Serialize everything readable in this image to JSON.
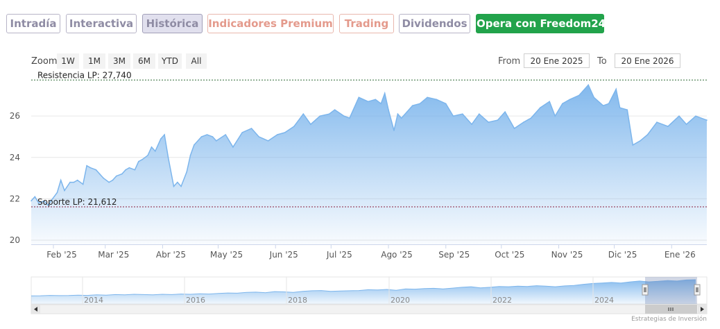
{
  "tabs": [
    {
      "label": "Intradía",
      "style": "purple"
    },
    {
      "label": "Interactiva",
      "style": "purple"
    },
    {
      "label": "Histórica",
      "style": "active"
    },
    {
      "label": "Indicadores Premium",
      "style": "red"
    },
    {
      "label": "Trading",
      "style": "red"
    },
    {
      "label": "Dividendos",
      "style": "purple"
    },
    {
      "label": "Opera con Freedom24",
      "style": "green"
    }
  ],
  "zoom": {
    "label": "Zoom",
    "buttons": [
      "1W",
      "1M",
      "3M",
      "6M",
      "YTD",
      "All"
    ]
  },
  "range": {
    "from_label": "From",
    "from_value": "20 Ene 2025",
    "to_label": "To",
    "to_value": "20 Ene 2026"
  },
  "credits": "Estrategias de Inversión",
  "colors": {
    "line": "#7cb5ec",
    "resistance": "#2e6a35",
    "support": "#8a1c3c",
    "accent_green": "#22a34b"
  },
  "chart_data": {
    "type": "area",
    "title": "",
    "x_start": "2025-01-20",
    "x_end": "2026-01-20",
    "x_ticks": [
      "Feb '25",
      "Mar '25",
      "Abr '25",
      "May '25",
      "Jun '25",
      "Jul '25",
      "Ago '25",
      "Sep '25",
      "Oct '25",
      "Nov '25",
      "Dic '25",
      "Ene '26"
    ],
    "y_ticks": [
      "20",
      "22",
      "24",
      "26"
    ],
    "ylim": [
      19.8,
      27.85
    ],
    "grid": true,
    "resistance": {
      "label": "Resistencia LP: 27,740",
      "value": 27.74
    },
    "support": {
      "label": "Soporte LP: 21,612",
      "value": 21.612
    },
    "series": [
      {
        "x": [
          "2025-01-20",
          "2025-01-22",
          "2025-01-24",
          "2025-01-27",
          "2025-01-29",
          "2025-02-03",
          "2025-02-05",
          "2025-02-07",
          "2025-02-10",
          "2025-02-12",
          "2025-02-14",
          "2025-02-17",
          "2025-02-19",
          "2025-02-21",
          "2025-02-24",
          "2025-02-26",
          "2025-02-28",
          "2025-03-03",
          "2025-03-05",
          "2025-03-07",
          "2025-03-10",
          "2025-03-12",
          "2025-03-14",
          "2025-03-17",
          "2025-03-19",
          "2025-03-21",
          "2025-03-24",
          "2025-03-26",
          "2025-03-28",
          "2025-03-31",
          "2025-04-02",
          "2025-04-04",
          "2025-04-07",
          "2025-04-09",
          "2025-04-11",
          "2025-04-14",
          "2025-04-16",
          "2025-04-18",
          "2025-04-22",
          "2025-04-25",
          "2025-04-28",
          "2025-04-30",
          "2025-05-05",
          "2025-05-09",
          "2025-05-14",
          "2025-05-19",
          "2025-05-23",
          "2025-05-28",
          "2025-06-02",
          "2025-06-06",
          "2025-06-11",
          "2025-06-16",
          "2025-06-20",
          "2025-06-25",
          "2025-06-30",
          "2025-07-03",
          "2025-07-08",
          "2025-07-11",
          "2025-07-16",
          "2025-07-21",
          "2025-07-25",
          "2025-07-28",
          "2025-07-30",
          "2025-08-01",
          "2025-08-04",
          "2025-08-06",
          "2025-08-08",
          "2025-08-11",
          "2025-08-14",
          "2025-08-18",
          "2025-08-22",
          "2025-08-27",
          "2025-09-01",
          "2025-09-05",
          "2025-09-10",
          "2025-09-15",
          "2025-09-19",
          "2025-09-24",
          "2025-09-29",
          "2025-10-03",
          "2025-10-08",
          "2025-10-13",
          "2025-10-17",
          "2025-10-22",
          "2025-10-27",
          "2025-10-30",
          "2025-11-03",
          "2025-11-07",
          "2025-11-12",
          "2025-11-17",
          "2025-11-20",
          "2025-11-25",
          "2025-11-28",
          "2025-12-02",
          "2025-12-04",
          "2025-12-08",
          "2025-12-11",
          "2025-12-15",
          "2025-12-19",
          "2025-12-24",
          "2025-12-30",
          "2026-01-05",
          "2026-01-09",
          "2026-01-14",
          "2026-01-20"
        ],
        "y": [
          21.9,
          22.1,
          21.8,
          21.9,
          21.7,
          22.3,
          22.9,
          22.4,
          22.8,
          22.8,
          22.9,
          22.7,
          23.6,
          23.5,
          23.4,
          23.2,
          23.0,
          22.8,
          22.9,
          23.1,
          23.2,
          23.4,
          23.5,
          23.4,
          23.8,
          23.9,
          24.1,
          24.5,
          24.3,
          24.9,
          25.1,
          24.0,
          22.6,
          22.8,
          22.6,
          23.3,
          24.1,
          24.6,
          25.0,
          25.1,
          25.0,
          24.8,
          25.1,
          24.5,
          25.2,
          25.4,
          25.0,
          24.8,
          25.1,
          25.2,
          25.5,
          26.1,
          25.6,
          26.0,
          26.1,
          26.3,
          26.0,
          25.9,
          26.9,
          26.7,
          26.8,
          26.6,
          27.1,
          26.3,
          25.3,
          26.1,
          25.9,
          26.2,
          26.5,
          26.6,
          26.9,
          26.8,
          26.6,
          26.0,
          26.1,
          25.6,
          26.1,
          25.7,
          25.8,
          26.2,
          25.4,
          25.7,
          25.9,
          26.4,
          26.7,
          26.0,
          26.6,
          26.8,
          27.0,
          27.5,
          26.9,
          26.5,
          26.6,
          27.3,
          26.4,
          26.3,
          24.6,
          24.8,
          25.1,
          25.7,
          25.5,
          26.0,
          25.6,
          26.0,
          25.8
        ]
      }
    ]
  },
  "navigator": {
    "year_labels": [
      "2014",
      "2016",
      "2018",
      "2020",
      "2022",
      "2024"
    ],
    "y": [
      3.0,
      3.05,
      3.2,
      3.1,
      3.15,
      3.3,
      3.2,
      3.4,
      3.3,
      3.5,
      3.4,
      3.6,
      3.5,
      3.4,
      3.6,
      3.5,
      3.7,
      3.6,
      3.8,
      3.7,
      3.9,
      4.1,
      4.0,
      4.3,
      4.4,
      4.2,
      4.6,
      4.5,
      4.3,
      4.7,
      4.9,
      5.0,
      4.7,
      4.8,
      4.9,
      5.0,
      5.3,
      5.2,
      5.4,
      5.1,
      5.6,
      5.5,
      5.7,
      5.8,
      5.6,
      5.9,
      6.2,
      6.4,
      6.0,
      6.2,
      6.5,
      6.4,
      6.6,
      6.5,
      6.8,
      6.6,
      6.4,
      6.7,
      6.9,
      7.3,
      7.6,
      7.8,
      8.0,
      7.8,
      8.2,
      8.5,
      8.2,
      8.4,
      8.7,
      8.5,
      8.9,
      9.0
    ]
  }
}
